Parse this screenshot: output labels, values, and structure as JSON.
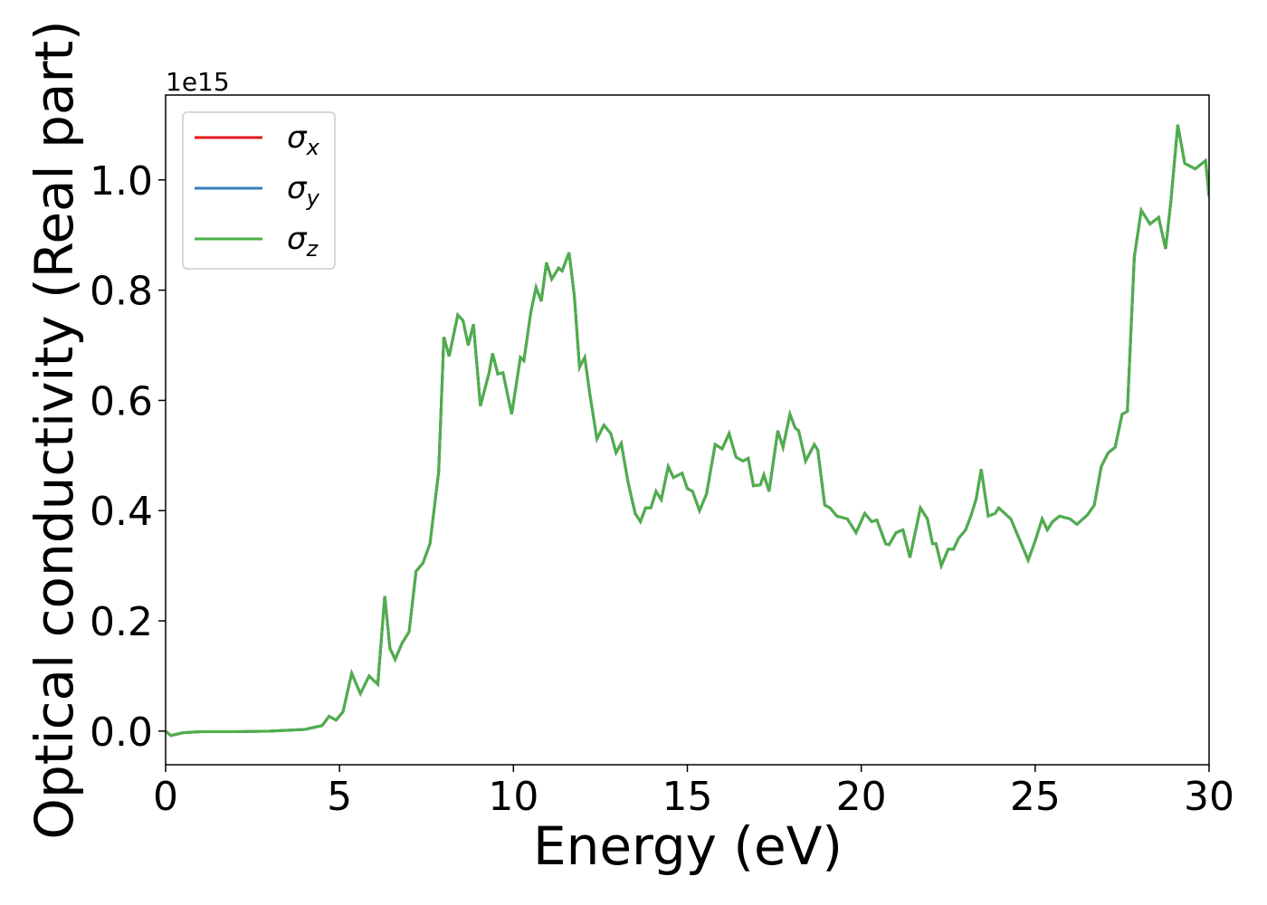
{
  "chart_data": {
    "type": "line",
    "xlabel": "Energy (eV)",
    "ylabel": "Optical conductivity (Real part)",
    "y_offset_label": "1e15",
    "x": [
      0,
      0.15,
      0.5,
      1,
      2,
      3,
      4,
      4.5,
      4.7,
      4.9,
      5.1,
      5.35,
      5.6,
      5.85,
      6.1,
      6.3,
      6.45,
      6.6,
      6.8,
      7.0,
      7.2,
      7.4,
      7.6,
      7.85,
      8.0,
      8.15,
      8.4,
      8.55,
      8.7,
      8.85,
      9.05,
      9.3,
      9.4,
      9.55,
      9.7,
      9.95,
      10.2,
      10.3,
      10.5,
      10.65,
      10.8,
      10.95,
      11.1,
      11.3,
      11.4,
      11.6,
      11.75,
      11.9,
      12.05,
      12.2,
      12.4,
      12.6,
      12.8,
      12.95,
      13.1,
      13.3,
      13.5,
      13.65,
      13.8,
      13.95,
      14.1,
      14.25,
      14.45,
      14.6,
      14.85,
      15.0,
      15.15,
      15.35,
      15.55,
      15.8,
      16.0,
      16.2,
      16.4,
      16.6,
      16.75,
      16.9,
      17.1,
      17.2,
      17.35,
      17.6,
      17.75,
      17.95,
      18.1,
      18.2,
      18.4,
      18.65,
      18.75,
      18.95,
      19.1,
      19.3,
      19.6,
      19.85,
      20.1,
      20.3,
      20.45,
      20.7,
      20.8,
      21.0,
      21.2,
      21.4,
      21.7,
      21.9,
      22.05,
      22.15,
      22.3,
      22.5,
      22.65,
      22.8,
      23.0,
      23.15,
      23.3,
      23.45,
      23.65,
      23.85,
      23.95,
      24.3,
      24.5,
      24.8,
      25.0,
      25.2,
      25.35,
      25.5,
      25.7,
      26.0,
      26.2,
      26.5,
      26.7,
      26.9,
      27.1,
      27.3,
      27.5,
      27.65,
      27.85,
      28.05,
      28.3,
      28.55,
      28.75,
      28.9,
      29.1,
      29.3,
      29.6,
      29.9,
      30.0
    ],
    "series": [
      {
        "name": "σx",
        "color": "#e41a1c",
        "values": [
          0,
          -0.008,
          -0.003,
          -0.001,
          -0.001,
          0,
          0.003,
          0.01,
          0.027,
          0.02,
          0.035,
          0.105,
          0.068,
          0.1,
          0.085,
          0.245,
          0.15,
          0.13,
          0.16,
          0.18,
          0.29,
          0.305,
          0.34,
          0.47,
          0.715,
          0.68,
          0.755,
          0.745,
          0.7,
          0.738,
          0.59,
          0.65,
          0.685,
          0.648,
          0.65,
          0.575,
          0.678,
          0.672,
          0.76,
          0.805,
          0.78,
          0.85,
          0.82,
          0.84,
          0.835,
          0.868,
          0.79,
          0.66,
          0.678,
          0.61,
          0.53,
          0.555,
          0.54,
          0.505,
          0.522,
          0.45,
          0.395,
          0.38,
          0.405,
          0.405,
          0.435,
          0.42,
          0.48,
          0.46,
          0.468,
          0.44,
          0.435,
          0.4,
          0.43,
          0.52,
          0.512,
          0.54,
          0.497,
          0.49,
          0.495,
          0.445,
          0.447,
          0.465,
          0.435,
          0.545,
          0.515,
          0.575,
          0.55,
          0.545,
          0.49,
          0.52,
          0.51,
          0.41,
          0.405,
          0.39,
          0.385,
          0.36,
          0.395,
          0.38,
          0.383,
          0.34,
          0.338,
          0.36,
          0.365,
          0.315,
          0.405,
          0.385,
          0.34,
          0.34,
          0.3,
          0.33,
          0.33,
          0.35,
          0.365,
          0.39,
          0.42,
          0.475,
          0.39,
          0.395,
          0.405,
          0.385,
          0.355,
          0.31,
          0.345,
          0.385,
          0.365,
          0.38,
          0.39,
          0.385,
          0.375,
          0.392,
          0.41,
          0.48,
          0.505,
          0.515,
          0.575,
          0.58,
          0.86,
          0.945,
          0.92,
          0.932,
          0.875,
          0.96,
          1.1,
          1.03,
          1.02,
          1.035,
          0.97
        ]
      },
      {
        "name": "σy",
        "color": "#377eb8",
        "values": [
          0,
          -0.008,
          -0.003,
          -0.001,
          -0.001,
          0,
          0.003,
          0.01,
          0.027,
          0.02,
          0.035,
          0.105,
          0.068,
          0.1,
          0.085,
          0.245,
          0.15,
          0.13,
          0.16,
          0.18,
          0.29,
          0.305,
          0.34,
          0.47,
          0.715,
          0.68,
          0.755,
          0.745,
          0.7,
          0.738,
          0.59,
          0.65,
          0.685,
          0.648,
          0.65,
          0.575,
          0.678,
          0.672,
          0.76,
          0.805,
          0.78,
          0.85,
          0.82,
          0.84,
          0.835,
          0.868,
          0.79,
          0.66,
          0.678,
          0.61,
          0.53,
          0.555,
          0.54,
          0.505,
          0.522,
          0.45,
          0.395,
          0.38,
          0.405,
          0.405,
          0.435,
          0.42,
          0.48,
          0.46,
          0.468,
          0.44,
          0.435,
          0.4,
          0.43,
          0.52,
          0.512,
          0.54,
          0.497,
          0.49,
          0.495,
          0.445,
          0.447,
          0.465,
          0.435,
          0.545,
          0.515,
          0.575,
          0.55,
          0.545,
          0.49,
          0.52,
          0.51,
          0.41,
          0.405,
          0.39,
          0.385,
          0.36,
          0.395,
          0.38,
          0.383,
          0.34,
          0.338,
          0.36,
          0.365,
          0.315,
          0.405,
          0.385,
          0.34,
          0.34,
          0.3,
          0.33,
          0.33,
          0.35,
          0.365,
          0.39,
          0.42,
          0.475,
          0.39,
          0.395,
          0.405,
          0.385,
          0.355,
          0.31,
          0.345,
          0.385,
          0.365,
          0.38,
          0.39,
          0.385,
          0.375,
          0.392,
          0.41,
          0.48,
          0.505,
          0.515,
          0.575,
          0.58,
          0.86,
          0.945,
          0.92,
          0.932,
          0.875,
          0.96,
          1.1,
          1.03,
          1.02,
          1.035,
          0.97
        ]
      },
      {
        "name": "σz",
        "color": "#4daf4a",
        "values": [
          0,
          -0.008,
          -0.003,
          -0.001,
          -0.001,
          0,
          0.003,
          0.01,
          0.027,
          0.02,
          0.035,
          0.105,
          0.068,
          0.1,
          0.085,
          0.245,
          0.15,
          0.13,
          0.16,
          0.18,
          0.29,
          0.305,
          0.34,
          0.47,
          0.715,
          0.68,
          0.755,
          0.745,
          0.7,
          0.738,
          0.59,
          0.65,
          0.685,
          0.648,
          0.65,
          0.575,
          0.678,
          0.672,
          0.76,
          0.805,
          0.78,
          0.85,
          0.82,
          0.84,
          0.835,
          0.868,
          0.79,
          0.66,
          0.678,
          0.61,
          0.53,
          0.555,
          0.54,
          0.505,
          0.522,
          0.45,
          0.395,
          0.38,
          0.405,
          0.405,
          0.435,
          0.42,
          0.48,
          0.46,
          0.468,
          0.44,
          0.435,
          0.4,
          0.43,
          0.52,
          0.512,
          0.54,
          0.497,
          0.49,
          0.495,
          0.445,
          0.447,
          0.465,
          0.435,
          0.545,
          0.515,
          0.575,
          0.55,
          0.545,
          0.49,
          0.52,
          0.51,
          0.41,
          0.405,
          0.39,
          0.385,
          0.36,
          0.395,
          0.38,
          0.383,
          0.34,
          0.338,
          0.36,
          0.365,
          0.315,
          0.405,
          0.385,
          0.34,
          0.34,
          0.3,
          0.33,
          0.33,
          0.35,
          0.365,
          0.39,
          0.42,
          0.475,
          0.39,
          0.395,
          0.405,
          0.385,
          0.355,
          0.31,
          0.345,
          0.385,
          0.365,
          0.38,
          0.39,
          0.385,
          0.375,
          0.392,
          0.41,
          0.48,
          0.505,
          0.515,
          0.575,
          0.58,
          0.86,
          0.945,
          0.92,
          0.932,
          0.875,
          0.96,
          1.1,
          1.03,
          1.02,
          1.035,
          0.97
        ]
      }
    ],
    "xlim": [
      0,
      30
    ],
    "xticks": [
      0,
      5,
      10,
      15,
      20,
      25,
      30
    ],
    "ylim": [
      -0.061,
      1.154
    ],
    "yticks": [
      {
        "value": 0,
        "label": "0.0"
      },
      0.2,
      0.4,
      0.6,
      0.8,
      {
        "value": 1,
        "label": "1.0"
      }
    ],
    "grid": false,
    "legend": "upper left"
  }
}
